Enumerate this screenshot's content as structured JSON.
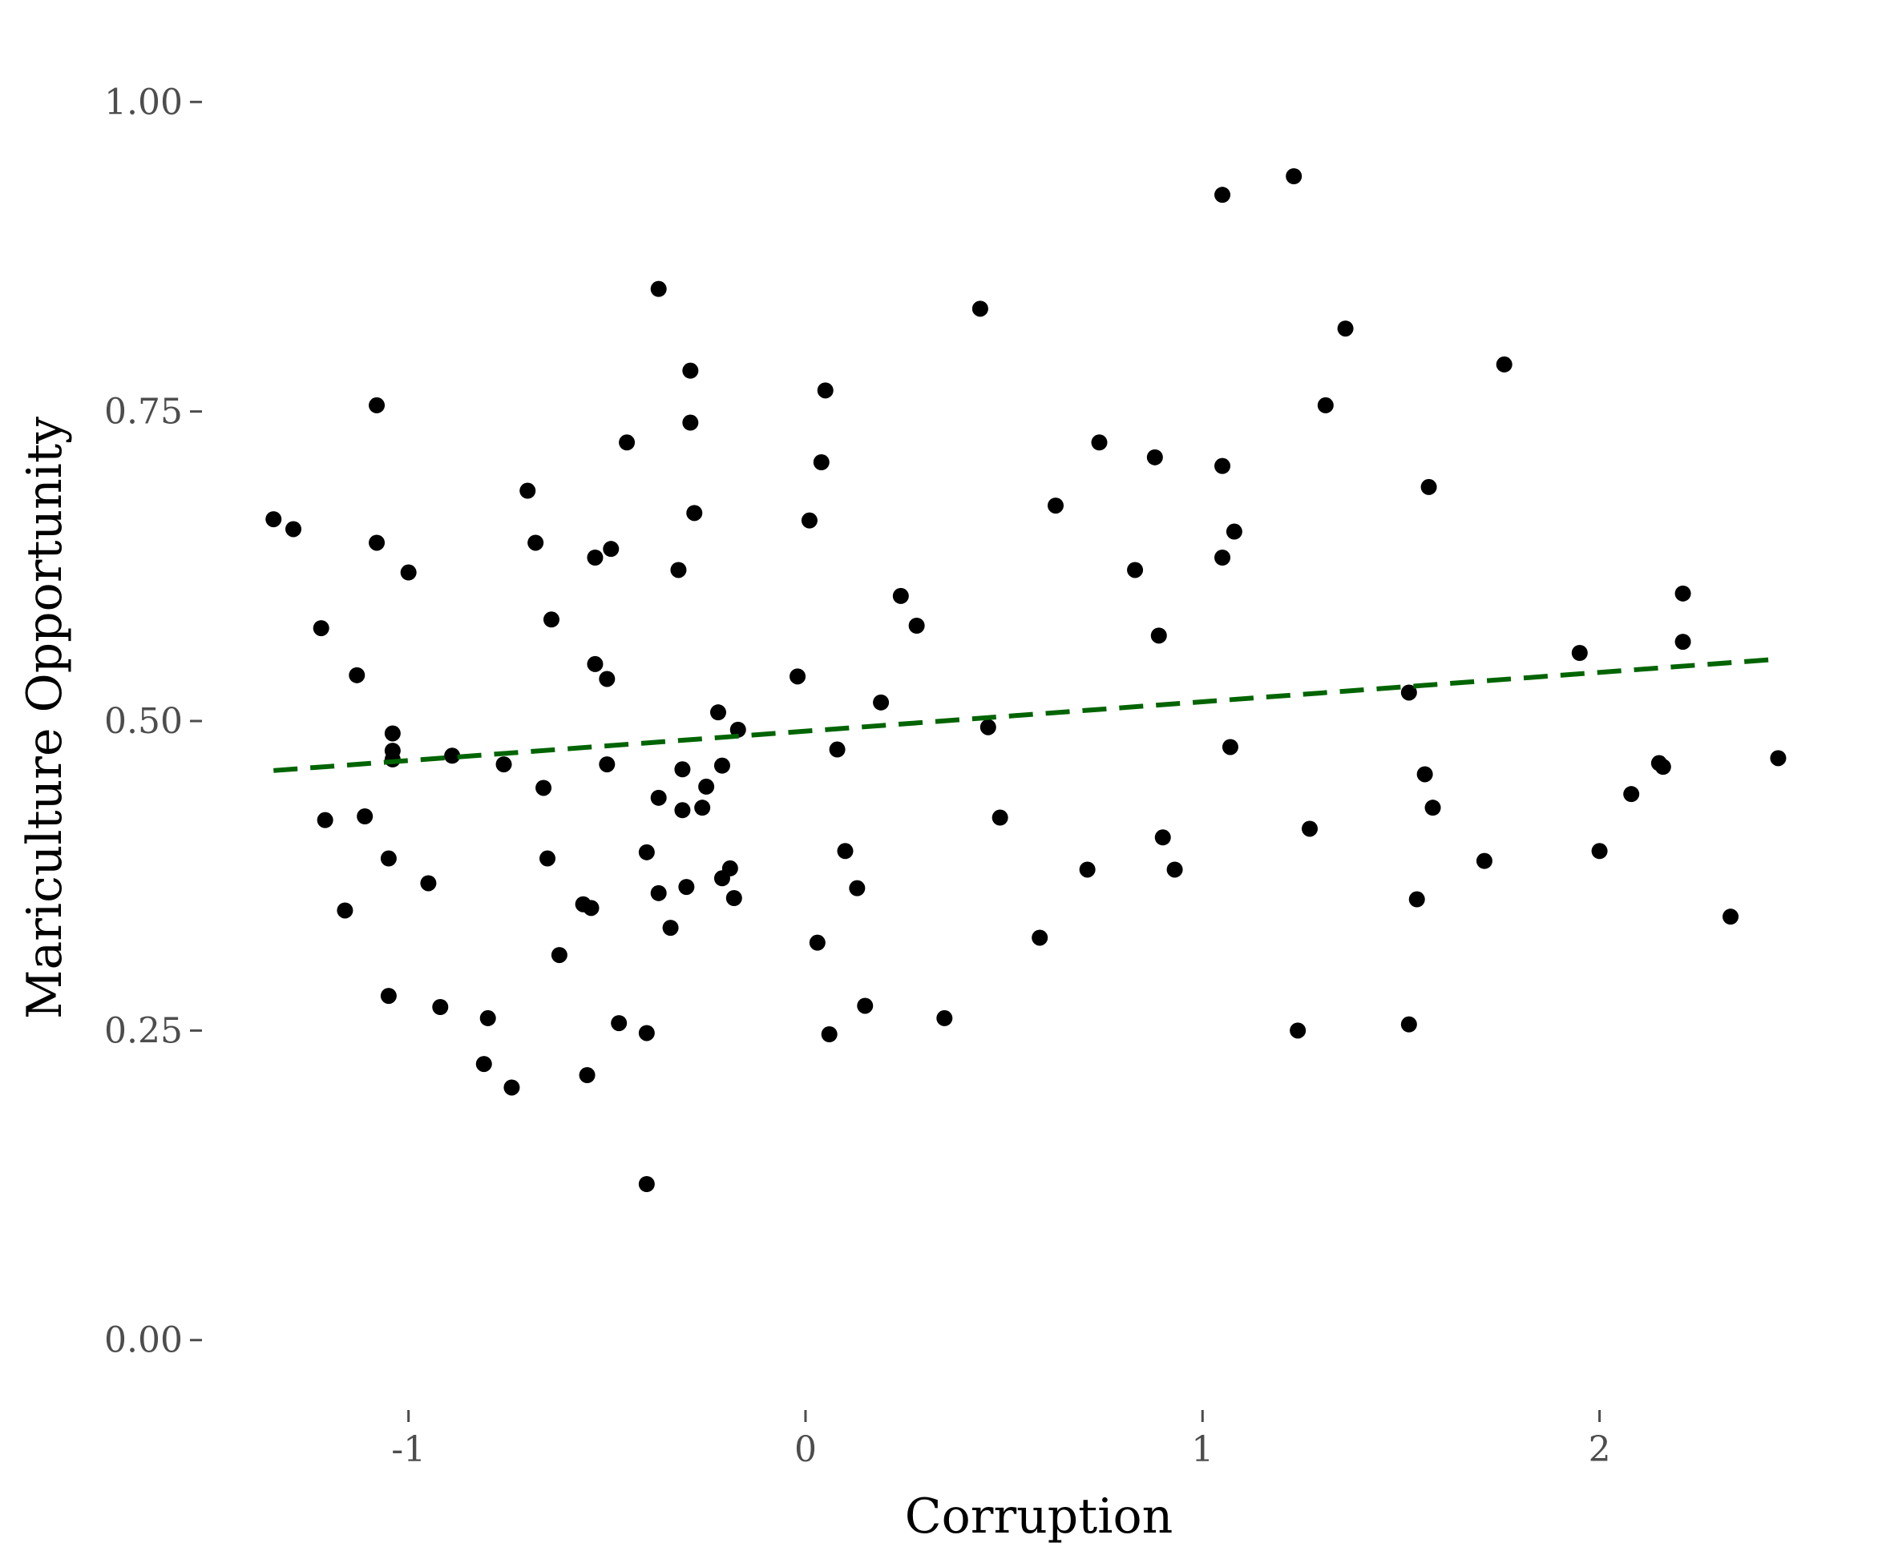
{
  "chart_data": {
    "type": "scatter",
    "title": "",
    "xlabel": "Corruption",
    "ylabel": "Mariculture Opportunity",
    "xlim": [
      -1.5,
      2.55
    ],
    "ylim": [
      -0.05,
      1.05
    ],
    "x_ticks": [
      {
        "value": -1,
        "label": "-1"
      },
      {
        "value": 0,
        "label": "0"
      },
      {
        "value": 1,
        "label": "1"
      },
      {
        "value": 2,
        "label": "2"
      }
    ],
    "y_ticks": [
      {
        "value": 0.0,
        "label": "0.00"
      },
      {
        "value": 0.25,
        "label": "0.25"
      },
      {
        "value": 0.5,
        "label": "0.50"
      },
      {
        "value": 0.75,
        "label": "0.75"
      },
      {
        "value": 1.0,
        "label": "1.00"
      }
    ],
    "grid": false,
    "legend": "none",
    "point_color": "#000000",
    "trend_color": "#006400",
    "trend_style": "dashed",
    "trendline": {
      "x": [
        -1.34,
        2.45
      ],
      "y": [
        0.46,
        0.55
      ]
    },
    "points": [
      [
        -1.34,
        0.663
      ],
      [
        -1.29,
        0.655
      ],
      [
        -1.22,
        0.575
      ],
      [
        -1.21,
        0.42
      ],
      [
        -1.16,
        0.347
      ],
      [
        -1.13,
        0.537
      ],
      [
        -1.11,
        0.423
      ],
      [
        -1.08,
        0.755
      ],
      [
        -1.08,
        0.644
      ],
      [
        -1.05,
        0.389
      ],
      [
        -1.04,
        0.49
      ],
      [
        -1.04,
        0.476
      ],
      [
        -1.04,
        0.469
      ],
      [
        -1.05,
        0.278
      ],
      [
        -1.0,
        0.62
      ],
      [
        -0.95,
        0.369
      ],
      [
        -0.92,
        0.269
      ],
      [
        -0.89,
        0.472
      ],
      [
        -0.8,
        0.26
      ],
      [
        -0.81,
        0.223
      ],
      [
        -0.76,
        0.465
      ],
      [
        -0.74,
        0.204
      ],
      [
        -0.7,
        0.686
      ],
      [
        -0.68,
        0.644
      ],
      [
        -0.66,
        0.446
      ],
      [
        -0.65,
        0.389
      ],
      [
        -0.64,
        0.582
      ],
      [
        -0.62,
        0.311
      ],
      [
        -0.56,
        0.352
      ],
      [
        -0.55,
        0.214
      ],
      [
        -0.54,
        0.349
      ],
      [
        -0.53,
        0.632
      ],
      [
        -0.53,
        0.546
      ],
      [
        -0.5,
        0.534
      ],
      [
        -0.5,
        0.465
      ],
      [
        -0.49,
        0.639
      ],
      [
        -0.47,
        0.256
      ],
      [
        -0.45,
        0.725
      ],
      [
        -0.4,
        0.394
      ],
      [
        -0.4,
        0.248
      ],
      [
        -0.4,
        0.126
      ],
      [
        -0.37,
        0.849
      ],
      [
        -0.37,
        0.438
      ],
      [
        -0.37,
        0.361
      ],
      [
        -0.34,
        0.333
      ],
      [
        -0.32,
        0.622
      ],
      [
        -0.31,
        0.461
      ],
      [
        -0.31,
        0.428
      ],
      [
        -0.3,
        0.366
      ],
      [
        -0.29,
        0.783
      ],
      [
        -0.29,
        0.741
      ],
      [
        -0.28,
        0.668
      ],
      [
        -0.26,
        0.43
      ],
      [
        -0.25,
        0.447
      ],
      [
        -0.22,
        0.507
      ],
      [
        -0.21,
        0.373
      ],
      [
        -0.21,
        0.464
      ],
      [
        -0.19,
        0.381
      ],
      [
        -0.18,
        0.357
      ],
      [
        -0.17,
        0.493
      ],
      [
        -0.02,
        0.536
      ],
      [
        0.01,
        0.662
      ],
      [
        0.03,
        0.321
      ],
      [
        0.04,
        0.709
      ],
      [
        0.05,
        0.767
      ],
      [
        0.06,
        0.247
      ],
      [
        0.08,
        0.477
      ],
      [
        0.1,
        0.395
      ],
      [
        0.13,
        0.365
      ],
      [
        0.15,
        0.27
      ],
      [
        0.19,
        0.515
      ],
      [
        0.24,
        0.601
      ],
      [
        0.28,
        0.577
      ],
      [
        0.35,
        0.26
      ],
      [
        0.44,
        0.833
      ],
      [
        0.46,
        0.495
      ],
      [
        0.49,
        0.422
      ],
      [
        0.59,
        0.325
      ],
      [
        0.63,
        0.674
      ],
      [
        0.71,
        0.38
      ],
      [
        0.74,
        0.725
      ],
      [
        0.83,
        0.622
      ],
      [
        0.88,
        0.713
      ],
      [
        0.89,
        0.569
      ],
      [
        0.9,
        0.406
      ],
      [
        0.93,
        0.38
      ],
      [
        1.05,
        0.925
      ],
      [
        1.05,
        0.706
      ],
      [
        1.05,
        0.632
      ],
      [
        1.07,
        0.479
      ],
      [
        1.08,
        0.653
      ],
      [
        1.23,
        0.94
      ],
      [
        1.24,
        0.25
      ],
      [
        1.27,
        0.413
      ],
      [
        1.31,
        0.755
      ],
      [
        1.36,
        0.817
      ],
      [
        1.52,
        0.523
      ],
      [
        1.52,
        0.255
      ],
      [
        1.54,
        0.356
      ],
      [
        1.56,
        0.457
      ],
      [
        1.57,
        0.689
      ],
      [
        1.58,
        0.43
      ],
      [
        1.71,
        0.387
      ],
      [
        1.76,
        0.788
      ],
      [
        1.95,
        0.555
      ],
      [
        2.0,
        0.395
      ],
      [
        2.08,
        0.441
      ],
      [
        2.15,
        0.466
      ],
      [
        2.16,
        0.463
      ],
      [
        2.21,
        0.603
      ],
      [
        2.21,
        0.564
      ],
      [
        2.33,
        0.342
      ],
      [
        2.45,
        0.47
      ]
    ]
  }
}
